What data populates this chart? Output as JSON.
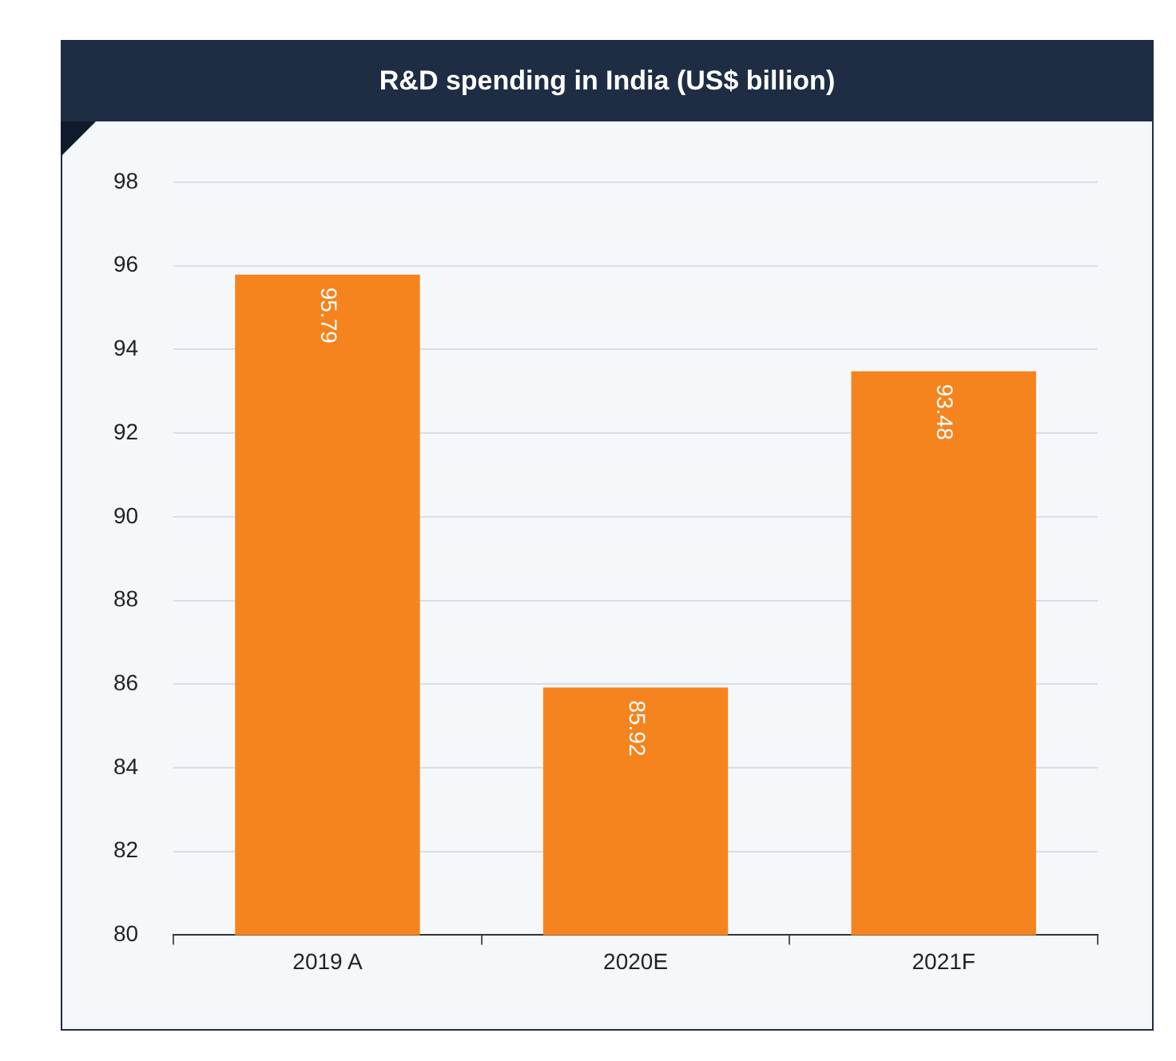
{
  "chart_data": {
    "type": "bar",
    "title": "R&D spending in India (US$ billion)",
    "categories": [
      "2019 A",
      "2020E",
      "2021F"
    ],
    "values": [
      95.79,
      85.92,
      93.48
    ],
    "color": "#f5841f",
    "ylim": [
      80,
      98
    ],
    "yticks": [
      80,
      82,
      84,
      86,
      88,
      90,
      92,
      94,
      96,
      98
    ],
    "grid": "y",
    "data_labels": true
  }
}
